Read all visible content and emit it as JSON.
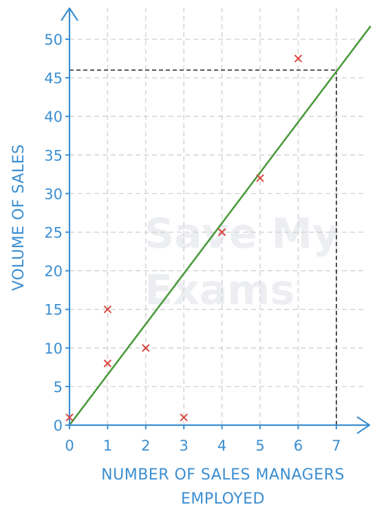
{
  "chart_data": {
    "type": "scatter",
    "xlabel_lines": [
      "NUMBER OF SALES MANAGERS",
      "EMPLOYED"
    ],
    "ylabel": "VOLUME OF SALES",
    "xlim": [
      0,
      7.9
    ],
    "ylim": [
      0,
      52
    ],
    "xticks": [
      0,
      1,
      2,
      3,
      4,
      5,
      6,
      7
    ],
    "yticks": [
      0,
      5,
      10,
      15,
      20,
      25,
      30,
      35,
      40,
      45,
      50
    ],
    "grid": true,
    "points": [
      {
        "x": 0,
        "y": 1
      },
      {
        "x": 1,
        "y": 15
      },
      {
        "x": 1,
        "y": 8
      },
      {
        "x": 2,
        "y": 10
      },
      {
        "x": 3,
        "y": 1
      },
      {
        "x": 4,
        "y": 25
      },
      {
        "x": 5,
        "y": 32
      },
      {
        "x": 6,
        "y": 47.5
      }
    ],
    "trend_line": {
      "x0": 0,
      "y0": 0,
      "x1": 7.9,
      "y1": 51.7
    },
    "reading": {
      "x": 7,
      "y": 46
    },
    "watermark": [
      "Save My",
      "Exams"
    ],
    "colors": {
      "axis": "#3b8ed1",
      "grid": "#cfcfcf",
      "marker": "#d9473f",
      "trend": "#4a9a3c",
      "reading": "#222222"
    }
  }
}
